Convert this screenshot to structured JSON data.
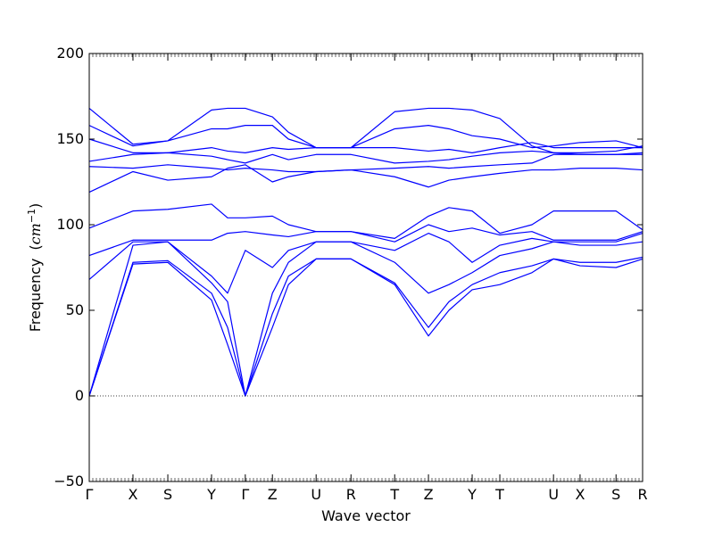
{
  "chart_data": {
    "type": "line",
    "title": "",
    "xlabel": "Wave vector",
    "ylabel": "Frequency",
    "ylabel_unit_var": "cm",
    "ylabel_unit_exp": "−1",
    "ylim": [
      -50,
      200
    ],
    "yticks": [
      -50,
      0,
      50,
      100,
      150,
      200
    ],
    "ytick_labels": [
      "−50",
      "0",
      "50",
      "100",
      "150",
      "200"
    ],
    "xlim": [
      0,
      1
    ],
    "xticks": [
      {
        "label": "Γ",
        "x": 0.0
      },
      {
        "label": "X",
        "x": 0.079
      },
      {
        "label": "S",
        "x": 0.142
      },
      {
        "label": "Y",
        "x": 0.221
      },
      {
        "label": "Γ",
        "x": 0.282
      },
      {
        "label": "Z",
        "x": 0.331
      },
      {
        "label": "U",
        "x": 0.41
      },
      {
        "label": "R",
        "x": 0.473
      },
      {
        "label": "T",
        "x": 0.552
      },
      {
        "label": "Z",
        "x": 0.613
      },
      {
        "label": "Y",
        "x": 0.692
      },
      {
        "label": "T",
        "x": 0.742
      },
      {
        "label": "U",
        "x": 0.839
      },
      {
        "label": "X",
        "x": 0.887
      },
      {
        "label": "S",
        "x": 0.952
      },
      {
        "label": "R",
        "x": 1.0
      }
    ],
    "zero_line": {
      "y": 0,
      "style": "dotted"
    },
    "grid": false,
    "legend": "none",
    "line_color": "#0000ff",
    "series": [
      {
        "x": [
          0,
          0.079,
          0.142,
          0.221,
          0.25,
          0.282,
          0.331,
          0.36,
          0.41,
          0.473,
          0.552,
          0.613,
          0.65,
          0.692,
          0.742,
          0.8,
          0.839,
          0.887,
          0.952,
          1.0
        ],
        "y": [
          0,
          77,
          78,
          56,
          30,
          0,
          40,
          65,
          80,
          80,
          65,
          35,
          50,
          62,
          65,
          72,
          80,
          76,
          75,
          80
        ]
      },
      {
        "x": [
          0,
          0.079,
          0.142,
          0.221,
          0.25,
          0.282,
          0.331,
          0.36,
          0.41,
          0.473,
          0.552,
          0.613,
          0.65,
          0.692,
          0.742,
          0.8,
          0.839,
          0.887,
          0.952,
          1.0
        ],
        "y": [
          0,
          78,
          79,
          60,
          40,
          0,
          48,
          70,
          80,
          80,
          66,
          40,
          55,
          65,
          72,
          76,
          80,
          78,
          78,
          81
        ]
      },
      {
        "x": [
          0,
          0.079,
          0.142,
          0.221,
          0.25,
          0.282,
          0.331,
          0.36,
          0.41,
          0.473,
          0.552,
          0.613,
          0.65,
          0.692,
          0.742,
          0.8,
          0.839,
          0.887,
          0.952,
          1.0
        ],
        "y": [
          0,
          88,
          90,
          66,
          55,
          0,
          60,
          78,
          90,
          90,
          78,
          60,
          65,
          72,
          82,
          86,
          90,
          88,
          88,
          90
        ]
      },
      {
        "x": [
          0,
          0.079,
          0.142,
          0.221,
          0.25,
          0.282,
          0.331,
          0.36,
          0.41,
          0.473,
          0.552,
          0.613,
          0.65,
          0.692,
          0.742,
          0.8,
          0.839,
          0.887,
          0.952,
          1.0
        ],
        "y": [
          68,
          90,
          90,
          70,
          60,
          85,
          75,
          85,
          90,
          90,
          85,
          95,
          90,
          78,
          88,
          92,
          90,
          90,
          90,
          95
        ]
      },
      {
        "x": [
          0,
          0.079,
          0.142,
          0.221,
          0.25,
          0.282,
          0.331,
          0.36,
          0.41,
          0.473,
          0.552,
          0.613,
          0.65,
          0.692,
          0.742,
          0.8,
          0.839,
          0.887,
          0.952,
          1.0
        ],
        "y": [
          82,
          91,
          91,
          91,
          95,
          96,
          94,
          93,
          96,
          96,
          90,
          100,
          96,
          98,
          94,
          96,
          91,
          91,
          91,
          96
        ]
      },
      {
        "x": [
          0,
          0.079,
          0.142,
          0.221,
          0.25,
          0.282,
          0.331,
          0.36,
          0.41,
          0.473,
          0.552,
          0.613,
          0.65,
          0.692,
          0.742,
          0.8,
          0.839,
          0.887,
          0.952,
          1.0
        ],
        "y": [
          98,
          108,
          109,
          112,
          104,
          104,
          105,
          100,
          96,
          96,
          92,
          105,
          110,
          108,
          95,
          100,
          108,
          108,
          108,
          97
        ]
      },
      {
        "x": [
          0,
          0.079,
          0.142,
          0.221,
          0.25,
          0.282,
          0.331,
          0.36,
          0.41,
          0.473,
          0.552,
          0.613,
          0.65,
          0.692,
          0.742,
          0.8,
          0.839,
          0.887,
          0.952,
          1.0
        ],
        "y": [
          119,
          131,
          126,
          128,
          133,
          135,
          125,
          128,
          131,
          132,
          128,
          122,
          126,
          128,
          130,
          132,
          132,
          133,
          133,
          132
        ]
      },
      {
        "x": [
          0,
          0.079,
          0.142,
          0.221,
          0.25,
          0.282,
          0.331,
          0.36,
          0.41,
          0.473,
          0.552,
          0.613,
          0.65,
          0.692,
          0.742,
          0.8,
          0.839,
          0.887,
          0.952,
          1.0
        ],
        "y": [
          134,
          133,
          135,
          133,
          132,
          133,
          132,
          131,
          131,
          132,
          133,
          134,
          133,
          134,
          135,
          136,
          141,
          141,
          141,
          141
        ]
      },
      {
        "x": [
          0,
          0.079,
          0.142,
          0.221,
          0.25,
          0.282,
          0.331,
          0.36,
          0.41,
          0.473,
          0.552,
          0.613,
          0.65,
          0.692,
          0.742,
          0.8,
          0.839,
          0.887,
          0.952,
          1.0
        ],
        "y": [
          137,
          141,
          142,
          140,
          138,
          136,
          141,
          138,
          141,
          141,
          136,
          137,
          138,
          140,
          142,
          143,
          142,
          141,
          141,
          142
        ]
      },
      {
        "x": [
          0,
          0.079,
          0.142,
          0.221,
          0.25,
          0.282,
          0.331,
          0.36,
          0.41,
          0.473,
          0.552,
          0.613,
          0.65,
          0.692,
          0.742,
          0.8,
          0.839,
          0.887,
          0.952,
          1.0
        ],
        "y": [
          150,
          142,
          142,
          145,
          143,
          142,
          145,
          144,
          145,
          145,
          145,
          143,
          144,
          142,
          145,
          148,
          145,
          145,
          145,
          145
        ]
      },
      {
        "x": [
          0,
          0.079,
          0.142,
          0.221,
          0.25,
          0.282,
          0.331,
          0.36,
          0.41,
          0.473,
          0.552,
          0.613,
          0.65,
          0.692,
          0.742,
          0.8,
          0.839,
          0.887,
          0.952,
          1.0
        ],
        "y": [
          158,
          146,
          149,
          156,
          156,
          158,
          158,
          150,
          145,
          145,
          156,
          158,
          156,
          152,
          150,
          145,
          146,
          148,
          149,
          145
        ]
      },
      {
        "x": [
          0,
          0.079,
          0.142,
          0.221,
          0.25,
          0.282,
          0.331,
          0.36,
          0.41,
          0.473,
          0.552,
          0.613,
          0.65,
          0.692,
          0.742,
          0.8,
          0.839,
          0.887,
          0.952,
          1.0
        ],
        "y": [
          168,
          147,
          149,
          167,
          168,
          168,
          163,
          154,
          145,
          145,
          166,
          168,
          168,
          167,
          162,
          146,
          142,
          142,
          143,
          146
        ]
      }
    ]
  }
}
